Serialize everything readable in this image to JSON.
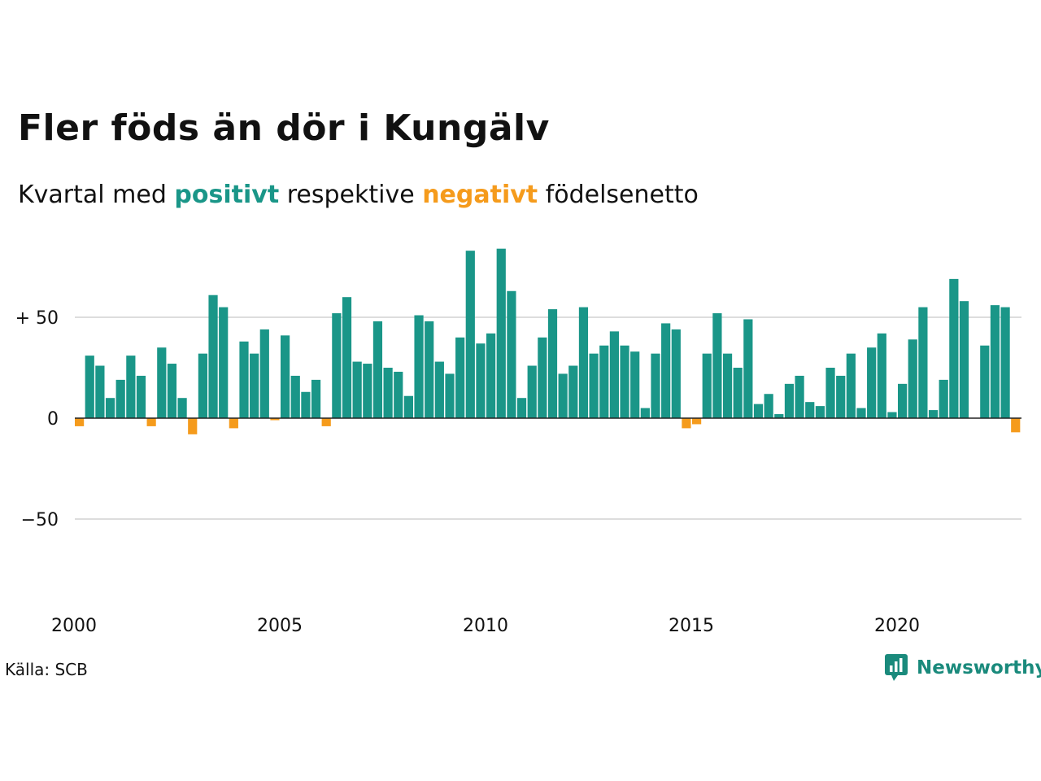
{
  "title": "Fler föds än dör i Kungälv",
  "subtitle": {
    "prefix": "Kvartal med ",
    "positive": "positivt",
    "middle": " respektive ",
    "negative": "negativt",
    "suffix": " födelsenetto"
  },
  "source": "Källa: SCB",
  "brand": {
    "name": "Newsworthy",
    "icon": "newsworthy-logo-icon"
  },
  "colors": {
    "positive": "#1a9688",
    "negative": "#f59b1c",
    "grid": "#dddddd",
    "axis": "#222222"
  },
  "chart_data": {
    "type": "bar",
    "title": "Fler föds än dör i Kungälv",
    "subtitle": "Kvartal med positivt respektive negativt födelsenetto",
    "x_start": "2000 Q1",
    "x_ticks": [
      "2000",
      "2005",
      "2010",
      "2015",
      "2020"
    ],
    "y_ticks": [
      {
        "value": 50,
        "label": "+ 50"
      },
      {
        "value": 0,
        "label": "0"
      },
      {
        "value": -50,
        "label": "−50"
      }
    ],
    "ylim": [
      -95,
      90
    ],
    "grid": true,
    "values": [
      -4,
      31,
      26,
      10,
      19,
      31,
      21,
      -4,
      35,
      27,
      10,
      -8,
      32,
      61,
      55,
      -5,
      38,
      32,
      44,
      -1,
      41,
      21,
      13,
      19,
      -4,
      52,
      60,
      28,
      27,
      48,
      25,
      23,
      11,
      51,
      48,
      28,
      22,
      40,
      83,
      37,
      42,
      84,
      63,
      10,
      26,
      40,
      54,
      22,
      26,
      55,
      32,
      36,
      43,
      36,
      33,
      5,
      32,
      47,
      44,
      -5,
      -3,
      32,
      52,
      32,
      25,
      49,
      7,
      12,
      2,
      17,
      21,
      8,
      6,
      25,
      21,
      32,
      5,
      35,
      42,
      3,
      17,
      39,
      55,
      4,
      19,
      69,
      58,
      0,
      36,
      56,
      55,
      -7
    ]
  }
}
